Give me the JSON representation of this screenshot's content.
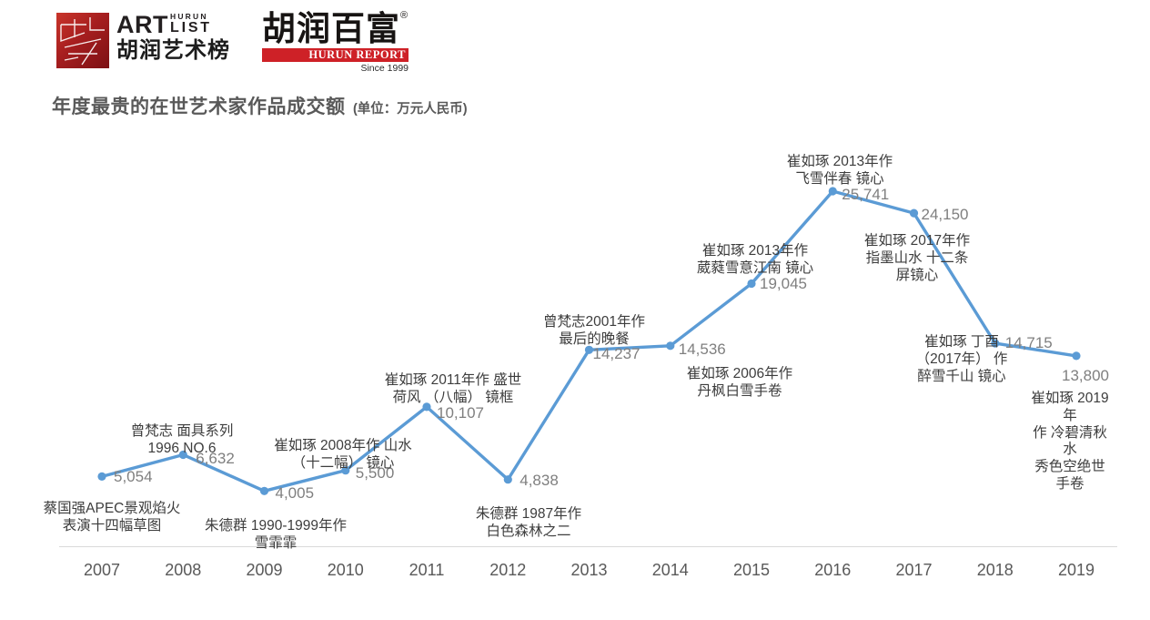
{
  "header": {
    "artlist_logo": {
      "art": "ART",
      "hurun": "HURUN",
      "list": "LIST",
      "chinese": "胡润艺术榜"
    },
    "hurun_logo": {
      "chinese": "胡润百富",
      "registered": "®",
      "english": "HURUN REPORT",
      "since": "Since 1999"
    }
  },
  "chart_data": {
    "type": "line",
    "title": "年度最贵的在世艺术家作品成交额",
    "unit": "(单位：万元人民币)",
    "categories": [
      "2007",
      "2008",
      "2009",
      "2010",
      "2011",
      "2012",
      "2013",
      "2014",
      "2015",
      "2016",
      "2017",
      "2018",
      "2019"
    ],
    "values": [
      5054,
      6632,
      4005,
      5500,
      10107,
      4838,
      14237,
      14536,
      19045,
      25741,
      24150,
      14715,
      13800
    ],
    "value_labels": [
      "5,054",
      "6,632",
      "4,005",
      "5,500",
      "10,107",
      "4,838",
      "14,237",
      "14,536",
      "19,045",
      "25,741",
      "24,150",
      "14,715",
      "13,800"
    ],
    "point_annotations": [
      "蔡国强APEC景观焰火\n表演十四幅草图",
      "曾梵志 面具系列\n1996 NO.6",
      "朱德群 1990-1999年作\n雪霏霏",
      "崔如琢 2008年作 山水\n（十二幅） 镜心",
      "崔如琢 2011年作 盛世\n荷风 （八幅） 镜框",
      "朱德群 1987年作\n白色森林之二",
      "曾梵志2001年作\n最后的晚餐",
      "崔如琢 2006年作\n丹枫白雪手卷",
      "崔如琢 2013年作\n葳蕤雪意江南 镜心",
      "崔如琢 2013年作\n飞雪伴春 镜心",
      "崔如琢 2017年作\n指墨山水 十二条\n屏镜心",
      "崔如琢 丁酉\n（2017年） 作\n醉雪千山 镜心",
      "崔如琢 2019年\n作 冷碧清秋水\n秀色空绝世 手卷"
    ],
    "line_color": "#5B9BD5",
    "xlabel": "",
    "ylabel": "",
    "ylim": [
      0,
      30000
    ],
    "grid": "off",
    "legend": "none"
  }
}
